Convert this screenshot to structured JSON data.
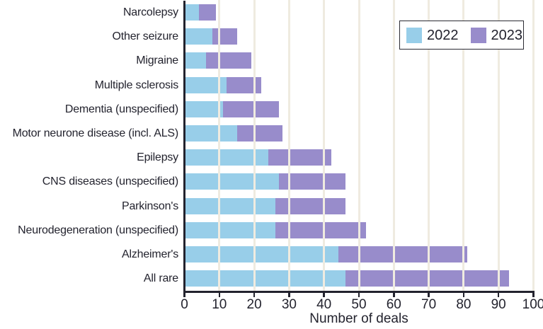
{
  "chart_data": {
    "type": "bar",
    "orientation": "horizontal",
    "stacked": true,
    "title": "",
    "xlabel": "Number of deals",
    "ylabel": "",
    "xlim": [
      0,
      100
    ],
    "xticks": [
      0,
      10,
      20,
      30,
      40,
      50,
      60,
      70,
      80,
      90,
      100
    ],
    "grid": "vertical gridlines drawn over bars",
    "legend_position": "top-right",
    "categories": [
      "Narcolepsy",
      "Other seizure",
      "Migraine",
      "Multiple sclerosis",
      "Dementia (unspecified)",
      "Motor neurone disease (incl. ALS)",
      "Epilepsy",
      "CNS diseases (unspecified)",
      "Parkinson's",
      "Neurodegeneration (unspecified)",
      "Alzheimer's",
      "All rare"
    ],
    "series": [
      {
        "name": "2022",
        "color": "#98CEE9",
        "values": [
          4,
          8,
          6,
          12,
          11,
          15,
          24,
          27,
          26,
          26,
          44,
          46
        ]
      },
      {
        "name": "2023",
        "color": "#988CCB",
        "values": [
          5,
          7,
          13,
          10,
          16,
          13,
          18,
          19,
          20,
          26,
          37,
          47
        ]
      }
    ]
  },
  "legend": {
    "items": [
      {
        "label": "2022",
        "color": "#98CEE9"
      },
      {
        "label": "2023",
        "color": "#988CCB"
      }
    ]
  },
  "axis": {
    "title": "Number of deals"
  },
  "colors": {
    "bar_2022": "#98CEE9",
    "bar_2023": "#988CCB",
    "gridline": "#EFEBE0",
    "axis_line": "#23232E",
    "text": "#23232E",
    "legend_border": "#2B2B33",
    "background": "#FFFFFF"
  }
}
